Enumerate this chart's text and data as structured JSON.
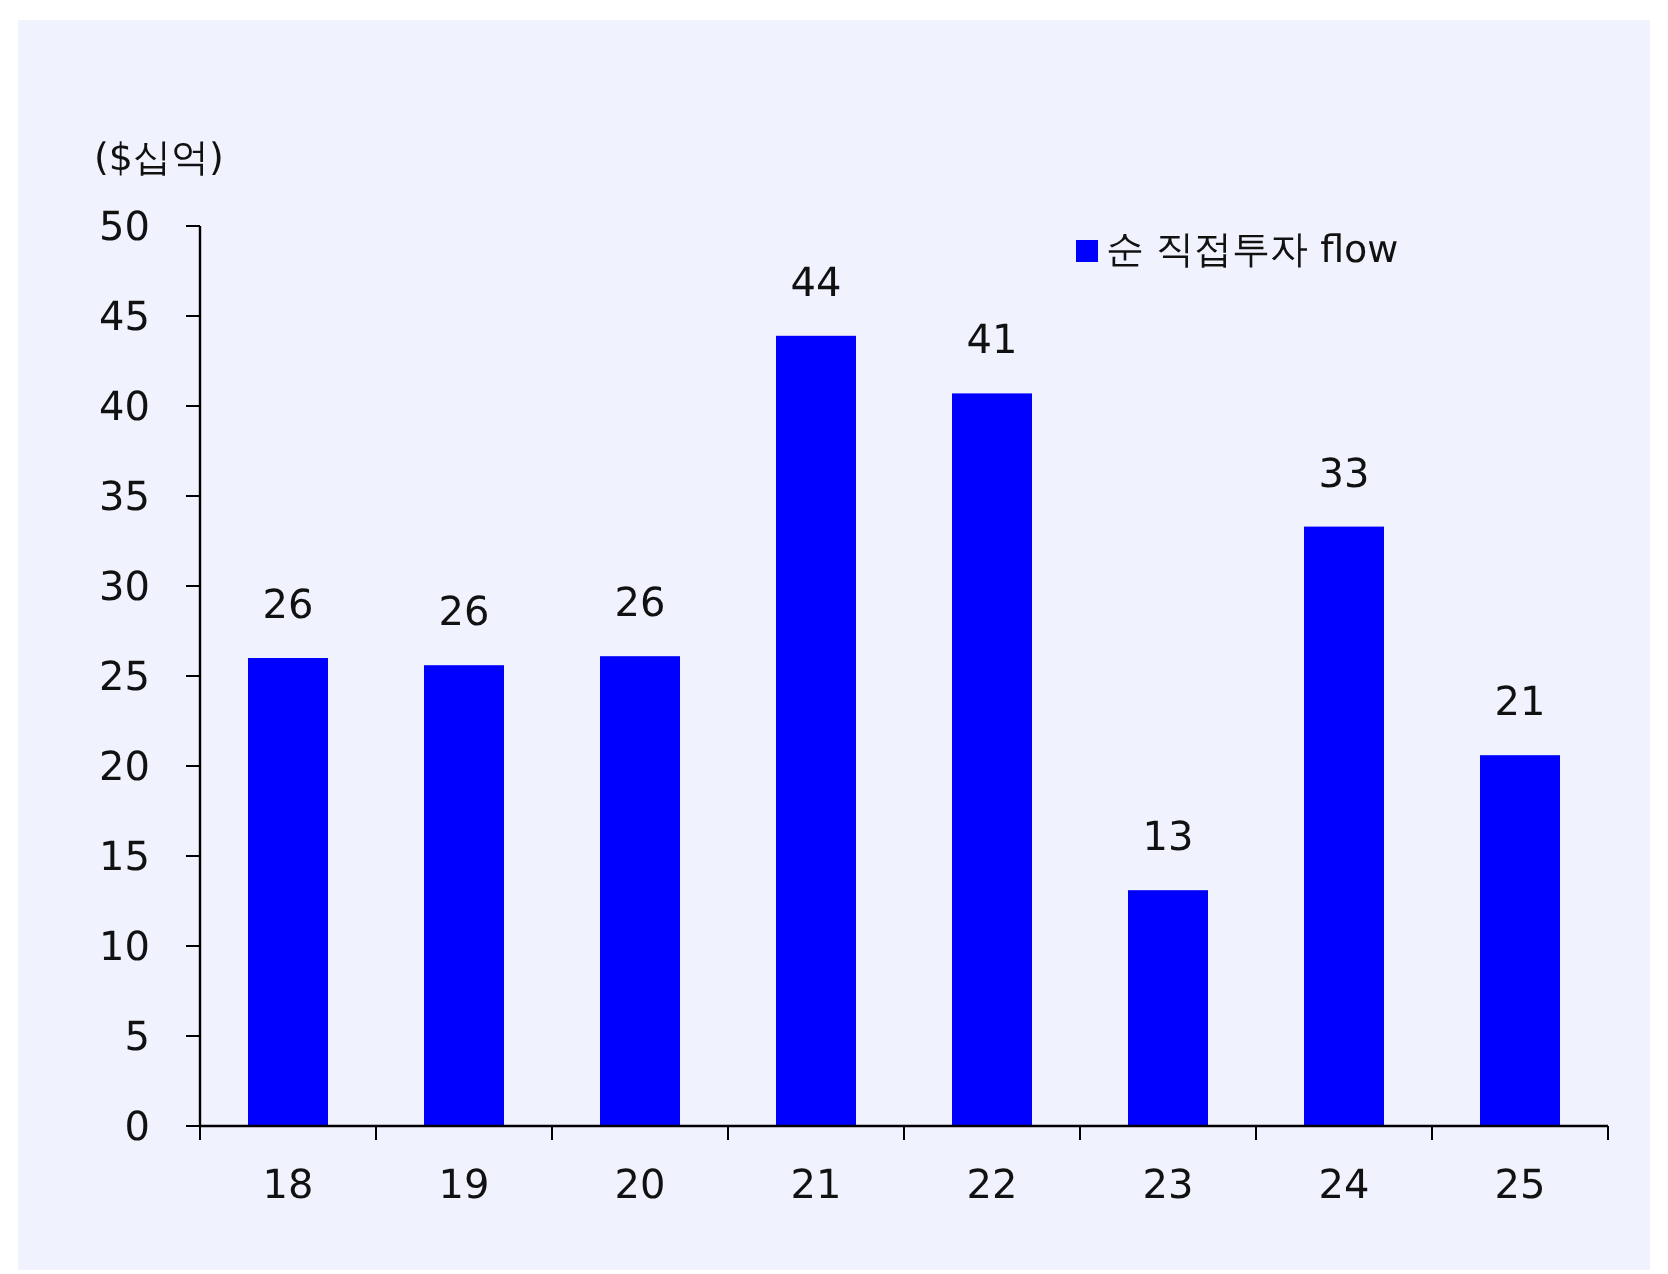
{
  "chart_data": {
    "type": "bar",
    "ylabel": "($십억)",
    "categories": [
      "18",
      "19",
      "20",
      "21",
      "22",
      "23",
      "24",
      "25"
    ],
    "series": [
      {
        "name": "순 직접투자 flow",
        "color": "#0000ff",
        "values": [
          26.0,
          25.6,
          26.1,
          43.9,
          40.7,
          13.1,
          33.3,
          20.6
        ],
        "value_labels": [
          "26",
          "26",
          "26",
          "44",
          "41",
          "13",
          "33",
          "21"
        ]
      }
    ],
    "ylim": [
      0,
      50
    ],
    "yticks": [
      0,
      5,
      10,
      15,
      20,
      25,
      30,
      35,
      40,
      45,
      50
    ],
    "grid": false,
    "legend": "top right"
  }
}
